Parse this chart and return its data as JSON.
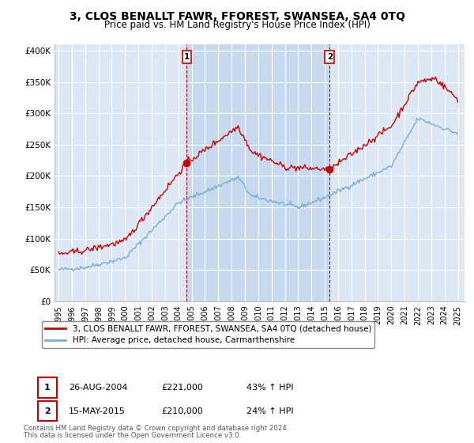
{
  "title": "3, CLOS BENALLT FAWR, FFOREST, SWANSEA, SA4 0TQ",
  "subtitle": "Price paid vs. HM Land Registry's House Price Index (HPI)",
  "title_fontsize": 10,
  "subtitle_fontsize": 8.5,
  "background_color": "#ffffff",
  "plot_bg_color": "#dce8f5",
  "shade_color": "#c5d8ef",
  "grid_color": "#ffffff",
  "sale1_x": 2004.64,
  "sale1_price": 221000,
  "sale1_label": "1",
  "sale1_date_str": "26-AUG-2004",
  "sale1_pct": "43% ↑ HPI",
  "sale2_x": 2015.37,
  "sale2_price": 210000,
  "sale2_label": "2",
  "sale2_date_str": "15-MAY-2015",
  "sale2_pct": "24% ↑ HPI",
  "legend_line1": "3, CLOS BENALLT FAWR, FFOREST, SWANSEA, SA4 0TQ (detached house)",
  "legend_line2": "HPI: Average price, detached house, Carmarthenshire",
  "footer1": "Contains HM Land Registry data © Crown copyright and database right 2024.",
  "footer2": "This data is licensed under the Open Government Licence v3.0.",
  "ylabel_ticks": [
    "£0",
    "£50K",
    "£100K",
    "£150K",
    "£200K",
    "£250K",
    "£300K",
    "£350K",
    "£400K"
  ],
  "ytick_vals": [
    0,
    50000,
    100000,
    150000,
    200000,
    250000,
    300000,
    350000,
    400000
  ],
  "x_start_year": 1995,
  "x_end_year": 2025,
  "red_color": "#cc0000",
  "blue_color": "#7aafd4",
  "sale_marker_color": "#cc0000"
}
